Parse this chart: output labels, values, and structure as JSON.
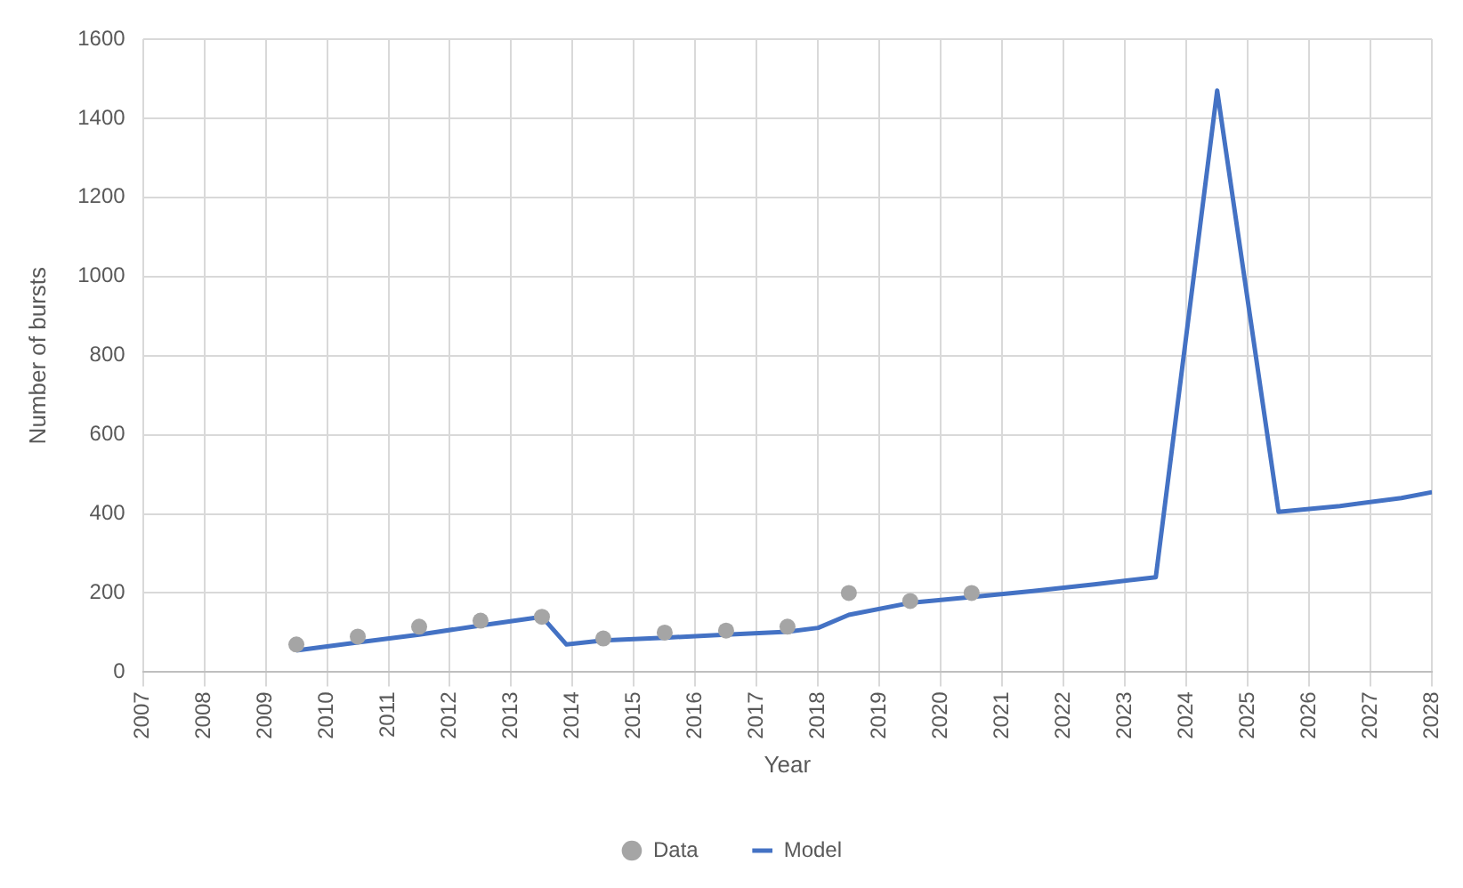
{
  "chart_data": {
    "type": "line",
    "xlabel": "Year",
    "ylabel": "Number of bursts",
    "xlim": [
      2007,
      2028
    ],
    "xticks": [
      2007,
      2008,
      2009,
      2010,
      2011,
      2012,
      2013,
      2014,
      2015,
      2016,
      2017,
      2018,
      2019,
      2020,
      2021,
      2022,
      2023,
      2024,
      2025,
      2026,
      2027,
      2028
    ],
    "ylim": [
      0,
      1600
    ],
    "yticks": [
      0,
      200,
      400,
      600,
      800,
      1000,
      1200,
      1400,
      1600
    ],
    "grid": true,
    "legend": "bottom",
    "series": [
      {
        "name": "Data",
        "type": "scatter",
        "color": "#a5a5a5",
        "marker": "circle",
        "x": [
          2009.5,
          2010.5,
          2011.5,
          2012.5,
          2013.5,
          2014.5,
          2015.5,
          2016.5,
          2017.5,
          2018.5,
          2019.5,
          2020.5
        ],
        "values": [
          70,
          90,
          115,
          130,
          140,
          85,
          100,
          105,
          115,
          200,
          180,
          200
        ]
      },
      {
        "name": "Model",
        "color": "#4472c4",
        "marker": "none",
        "line_style": "solid",
        "x": [
          2009.5,
          2010.5,
          2011.5,
          2012.5,
          2013.5,
          2013.9,
          2014.5,
          2015.5,
          2016.5,
          2017.5,
          2018,
          2018.5,
          2019.5,
          2020.5,
          2021.5,
          2022.5,
          2023.5,
          2024.5,
          2025.5,
          2026.5,
          2027.5,
          2028
        ],
        "values": [
          55,
          75,
          95,
          118,
          140,
          70,
          80,
          87,
          95,
          102,
          112,
          145,
          175,
          190,
          205,
          222,
          240,
          1470,
          405,
          420,
          440,
          455
        ]
      }
    ]
  }
}
